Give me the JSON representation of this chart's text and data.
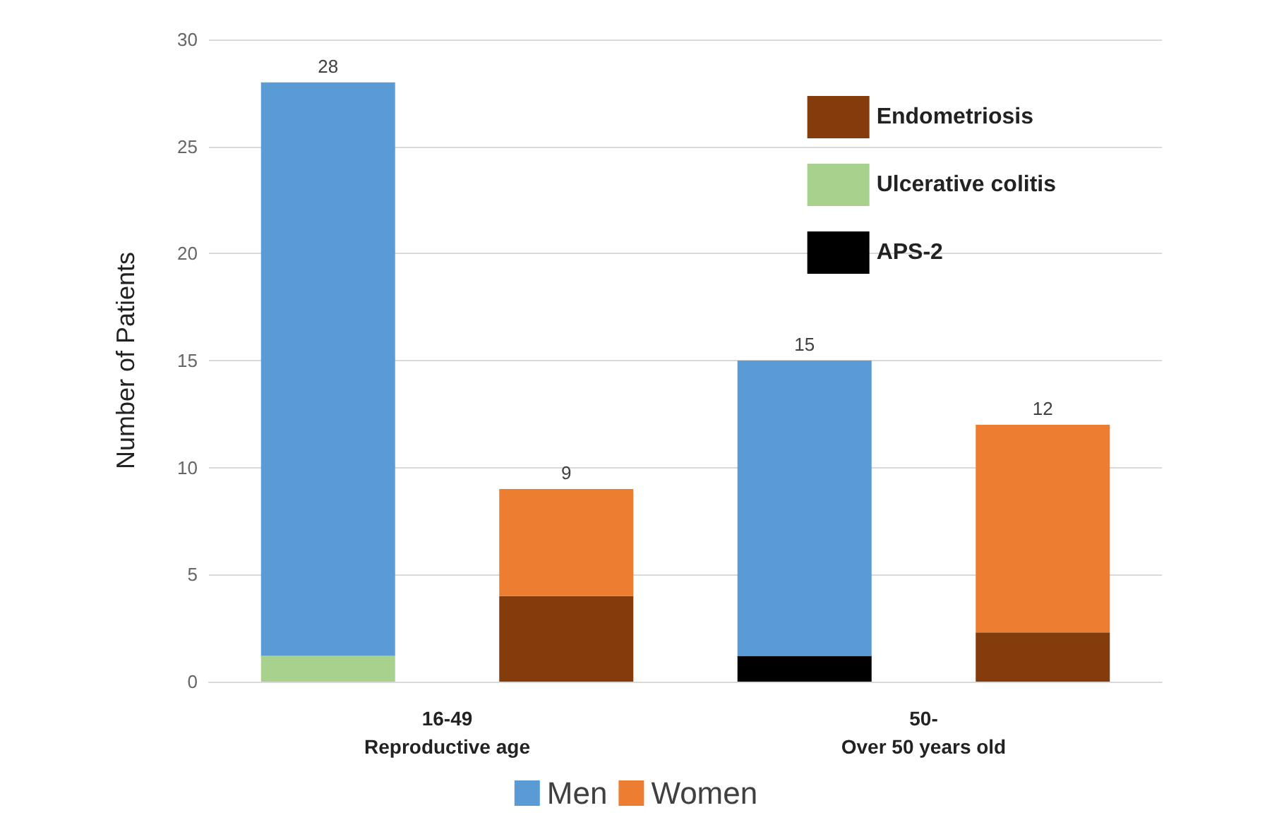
{
  "chart_data": {
    "type": "bar",
    "ylabel": "Number of Patients",
    "categories": [
      "16-49\nReproductive age",
      null,
      "50-\nOver 50 years old",
      null
    ],
    "stacked": true,
    "ylim": [
      0,
      30
    ],
    "yticks": [
      0,
      5,
      10,
      15,
      20,
      25,
      30
    ],
    "grid": "y",
    "legend": "bottom",
    "series": [
      {
        "name": "Endometriosis",
        "color": "#843c0c",
        "values": [
          null,
          4,
          null,
          2.3
        ]
      },
      {
        "name": "Ulcerative colitis",
        "color": "#a9d18e",
        "values": [
          1.2,
          null,
          null,
          null
        ]
      },
      {
        "name": "APS-2",
        "color": "#000000",
        "values": [
          null,
          null,
          1.2,
          null
        ]
      },
      {
        "name": "Men",
        "color": "#5b9bd5",
        "values": [
          26.8,
          null,
          13.8,
          null
        ]
      },
      {
        "name": "Women",
        "color": "#ed7d31",
        "values": [
          null,
          5,
          null,
          9.7
        ]
      }
    ],
    "totals": [
      "28",
      "9",
      "15",
      "12"
    ]
  }
}
